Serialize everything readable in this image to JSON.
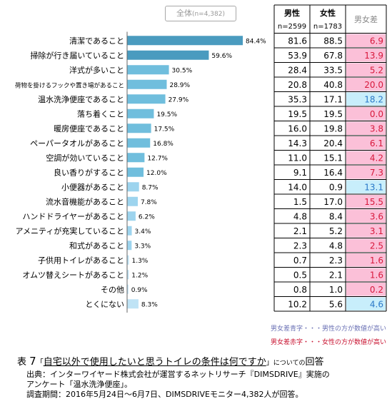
{
  "overall_tab": {
    "label": "全体",
    "n": "(n=4,382)"
  },
  "chart_data": {
    "type": "bar",
    "orientation": "horizontal",
    "xlim": [
      0,
      100
    ],
    "categories": [
      "清潔であること",
      "掃除が行き届いていること",
      "洋式が多いこと",
      "荷物を掛けるフックや置き場があること",
      "温水洗浄便座であること",
      "落ち着くこと",
      "暖房便座であること",
      "ペーパータオルがあること",
      "空調が効いていること",
      "良い香りがすること",
      "小便器があること",
      "流水音機能があること",
      "ハンドドライヤーがあること",
      "アメニティが充実していること",
      "和式があること",
      "子供用トイレがあること",
      "オムツ替えシートがあること",
      "その他",
      "とくにない"
    ],
    "values": [
      84.4,
      59.6,
      30.5,
      28.9,
      27.9,
      19.5,
      17.5,
      16.8,
      12.7,
      12.0,
      8.7,
      7.8,
      6.2,
      3.4,
      3.3,
      1.3,
      1.2,
      0.9,
      8.3
    ],
    "value_labels": [
      "84.4%",
      "59.6%",
      "30.5%",
      "28.9%",
      "27.9%",
      "19.5%",
      "17.5%",
      "16.8%",
      "12.7%",
      "12.0%",
      "8.7%",
      "7.8%",
      "6.2%",
      "3.4%",
      "3.3%",
      "1.3%",
      "1.2%",
      "0.9%",
      "8.3%"
    ],
    "colors": {
      "top": "#4a9bbf",
      "mid": "#70bedd",
      "light": "#9dd4ee",
      "lightest": "#bfe3f5"
    }
  },
  "table": {
    "headers": {
      "male": "男性",
      "male_n": "n=2599",
      "female": "女性",
      "female_n": "n=1783",
      "diff": "男女差"
    },
    "rows": [
      {
        "male": "81.6",
        "female": "88.5",
        "diff": "6.9",
        "sign": "red"
      },
      {
        "male": "53.9",
        "female": "67.8",
        "diff": "13.9",
        "sign": "red"
      },
      {
        "male": "28.4",
        "female": "33.5",
        "diff": "5.2",
        "sign": "red"
      },
      {
        "male": "20.8",
        "female": "40.8",
        "diff": "20.0",
        "sign": "red"
      },
      {
        "male": "35.3",
        "female": "17.1",
        "diff": "18.2",
        "sign": "blue"
      },
      {
        "male": "19.5",
        "female": "19.5",
        "diff": "0.0",
        "sign": "red"
      },
      {
        "male": "16.0",
        "female": "19.8",
        "diff": "3.8",
        "sign": "red"
      },
      {
        "male": "14.3",
        "female": "20.4",
        "diff": "6.1",
        "sign": "red"
      },
      {
        "male": "11.0",
        "female": "15.1",
        "diff": "4.2",
        "sign": "red"
      },
      {
        "male": "9.1",
        "female": "16.4",
        "diff": "7.3",
        "sign": "red"
      },
      {
        "male": "14.0",
        "female": "0.9",
        "diff": "13.1",
        "sign": "blue"
      },
      {
        "male": "1.5",
        "female": "17.0",
        "diff": "15.5",
        "sign": "red"
      },
      {
        "male": "4.8",
        "female": "8.4",
        "diff": "3.6",
        "sign": "red"
      },
      {
        "male": "2.1",
        "female": "5.2",
        "diff": "3.1",
        "sign": "red"
      },
      {
        "male": "2.3",
        "female": "4.8",
        "diff": "2.5",
        "sign": "red"
      },
      {
        "male": "0.7",
        "female": "2.3",
        "diff": "1.6",
        "sign": "red"
      },
      {
        "male": "0.5",
        "female": "2.1",
        "diff": "1.6",
        "sign": "red"
      },
      {
        "male": "0.8",
        "female": "1.0",
        "diff": "0.2",
        "sign": "red"
      },
      {
        "male": "10.2",
        "female": "5.6",
        "diff": "4.6",
        "sign": "blue"
      }
    ],
    "diff_colors": {
      "red_bg": "#fbc0d8",
      "red_text": "#d8183c",
      "blue_bg": "#c8eefb",
      "blue_text": "#2a78c8"
    }
  },
  "notes": {
    "blue": "男女差青字・・・男性の方が数値が高い",
    "red": "男女差赤字・・・女性の方が数値が高い"
  },
  "caption": {
    "label": "表",
    "number": "7",
    "open": "「",
    "title": "自宅以外で使用したいと思うトイレの条件は何ですか",
    "close": "」",
    "suffix_small": "についての",
    "suffix": "回答"
  },
  "source": {
    "line1": "出典：インターワイヤード株式会社が運営するネットリサーチ『DIMSDRIVE』実施の",
    "line2": "アンケート「温水洗浄便座」。",
    "line3": "調査期間：2016年5月24日～6月7日、DIMSDRIVEモニター4,382人が回答。"
  }
}
